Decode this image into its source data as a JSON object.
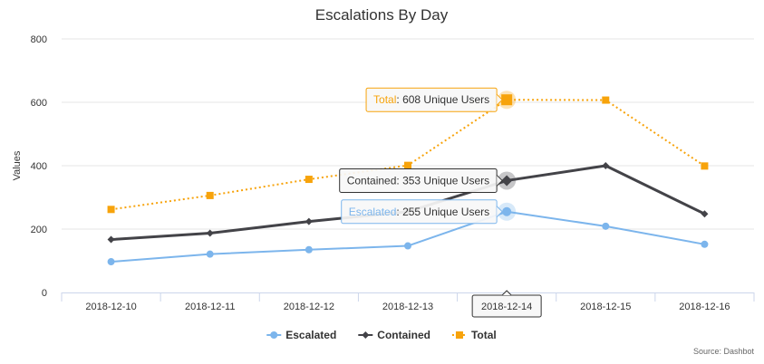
{
  "chart_data": {
    "type": "line",
    "title": "Escalations By Day",
    "xlabel": "",
    "ylabel": "Values",
    "ylim": [
      0,
      800
    ],
    "yticks": [
      0,
      200,
      400,
      600,
      800
    ],
    "grid": true,
    "legend_position": "bottom",
    "credit": "Source: Dashbot",
    "categories": [
      "2018-12-10",
      "2018-12-11",
      "2018-12-12",
      "2018-12-13",
      "2018-12-14",
      "2018-12-15",
      "2018-12-16"
    ],
    "series": [
      {
        "name": "Escalated",
        "color": "#7cb5ec",
        "marker": "circle",
        "dash": "solid",
        "values": [
          97,
          121,
          135,
          147,
          255,
          209,
          152
        ]
      },
      {
        "name": "Contained",
        "color": "#434348",
        "marker": "diamond",
        "dash": "solid",
        "values": [
          167,
          187,
          224,
          255,
          353,
          400,
          248
        ]
      },
      {
        "name": "Total",
        "color": "#f7a30b",
        "marker": "square",
        "dash": "dotted",
        "values": [
          262,
          306,
          357,
          401,
          608,
          607,
          399
        ]
      }
    ],
    "hover": {
      "category": "2018-12-14",
      "tooltips": [
        {
          "series": "Total",
          "label": "Total",
          "value_text": ": 608 Unique Users",
          "color": "#f7a30b"
        },
        {
          "series": "Contained",
          "label": "Contained",
          "value_text": ": 353 Unique Users",
          "color": "#333333"
        },
        {
          "series": "Escalated",
          "label": "Escalated",
          "value_text": ": 255 Unique Users",
          "color": "#7cb5ec"
        }
      ]
    }
  }
}
